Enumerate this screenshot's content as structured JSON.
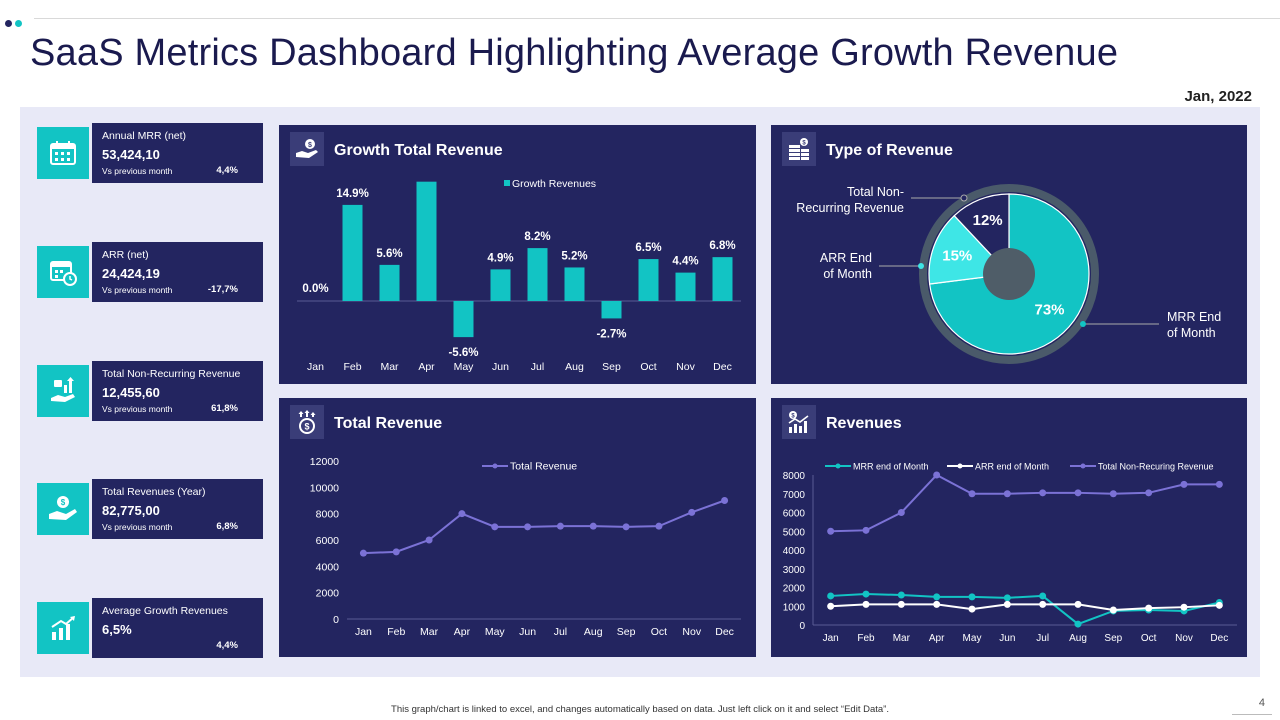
{
  "header": {
    "title": "SaaS Metrics Dashboard Highlighting Average Growth Revenue",
    "date": "Jan, 2022",
    "dot_colors": [
      "#232560",
      "#12c4c4"
    ]
  },
  "kpis": [
    {
      "label": "Annual MRR  (net)",
      "value": "53,424,10",
      "sub": "Vs previous month",
      "pct": "4,4%",
      "icon": "calendar-icon"
    },
    {
      "label": "ARR (net)",
      "value": "24,424,19",
      "sub": "Vs previous month",
      "pct": "-17,7%",
      "icon": "calendar-clock-icon"
    },
    {
      "label": "Total Non-Recurring Revenue",
      "value": "12,455,60",
      "sub": "Vs previous month",
      "pct": "61,8%",
      "icon": "money-growth-hand-icon"
    },
    {
      "label": "Total Revenues (Year)",
      "value": "82,775,00",
      "sub": "Vs previous month",
      "pct": "6,8%",
      "icon": "coin-hand-icon"
    },
    {
      "label": "Average Growth Revenues",
      "value": "6,5%",
      "sub": "",
      "pct": "4,4%",
      "icon": "growth-chart-icon"
    }
  ],
  "panels": {
    "growth": {
      "title": "Growth Total Revenue",
      "icon": "hand-money-icon"
    },
    "type": {
      "title": "Type of Revenue",
      "icon": "money-stack-icon"
    },
    "total": {
      "title": "Total Revenue",
      "icon": "money-bag-growth-icon"
    },
    "revenues": {
      "title": "Revenues",
      "icon": "chart-analysis-icon"
    }
  },
  "colors": {
    "accent": "#12c4c4",
    "panel": "#232560",
    "purple": "#7b72d6",
    "white": "#ffffff",
    "ring": "#4a5a6a"
  },
  "chart_data": [
    {
      "id": "growth",
      "type": "bar",
      "title": "Growth Total Revenue",
      "legend": "Growth Revenues",
      "categories": [
        "Jan",
        "Feb",
        "Mar",
        "Apr",
        "May",
        "Jun",
        "Jul",
        "Aug",
        "Sep",
        "Oct",
        "Nov",
        "Dec"
      ],
      "values": [
        0.0,
        14.9,
        5.6,
        18.5,
        -5.6,
        4.9,
        8.2,
        5.2,
        -2.7,
        6.5,
        4.4,
        6.8
      ],
      "labels": [
        "0.0%",
        "14.9%",
        "5.6%",
        "",
        "-5.6%",
        "4.9%",
        "8.2%",
        "5.2%",
        "-2.7%",
        "6.5%",
        "4.4%",
        "6.8%"
      ]
    },
    {
      "id": "type",
      "type": "pie",
      "title": "Type of Revenue",
      "slices": [
        {
          "name": "MRR End of Month",
          "value": 73,
          "label": "73%"
        },
        {
          "name": "ARR End of Month",
          "value": 15,
          "label": "15%"
        },
        {
          "name": "Total Non-Recurring Revenue",
          "value": 12,
          "label": "12%"
        }
      ],
      "callouts": {
        "nonrec": [
          "Total Non-",
          "Recurring Revenue"
        ],
        "arr": [
          "ARR End",
          "of Month"
        ],
        "mrr": [
          "MRR End",
          "of Month"
        ]
      }
    },
    {
      "id": "total",
      "type": "line",
      "title": "Total Revenue",
      "categories": [
        "Jan",
        "Feb",
        "Mar",
        "Apr",
        "May",
        "Jun",
        "Jul",
        "Aug",
        "Sep",
        "Oct",
        "Nov",
        "Dec"
      ],
      "series": [
        {
          "name": "Total Revenue",
          "values": [
            5000,
            5100,
            6000,
            8000,
            7000,
            7000,
            7050,
            7050,
            7000,
            7050,
            8100,
            9000
          ]
        }
      ],
      "ylim": [
        0,
        12000
      ],
      "yticks": [
        0,
        2000,
        4000,
        6000,
        8000,
        10000,
        12000
      ]
    },
    {
      "id": "revenues",
      "type": "line",
      "title": "Revenues",
      "categories": [
        "Jan",
        "Feb",
        "Mar",
        "Apr",
        "May",
        "Jun",
        "Jul",
        "Aug",
        "Sep",
        "Oct",
        "Nov",
        "Dec"
      ],
      "series": [
        {
          "name": "MRR end of Month",
          "values": [
            1550,
            1650,
            1600,
            1500,
            1500,
            1450,
            1550,
            50,
            750,
            800,
            750,
            1200
          ]
        },
        {
          "name": "ARR end of Month",
          "values": [
            1000,
            1100,
            1100,
            1100,
            850,
            1100,
            1100,
            1100,
            800,
            900,
            950,
            1050
          ]
        },
        {
          "name": "Total Non-Recuring Revenue",
          "values": [
            5000,
            5050,
            6000,
            8000,
            7000,
            7000,
            7050,
            7050,
            7000,
            7050,
            7500,
            7500
          ]
        }
      ],
      "ylim": [
        0,
        8000
      ],
      "yticks": [
        0,
        1000,
        2000,
        3000,
        4000,
        5000,
        6000,
        7000,
        8000
      ]
    }
  ],
  "footer": {
    "note": "This graph/chart is linked to excel, and changes automatically based on data. Just left click on it and select “Edit Data”.",
    "page": "4"
  }
}
